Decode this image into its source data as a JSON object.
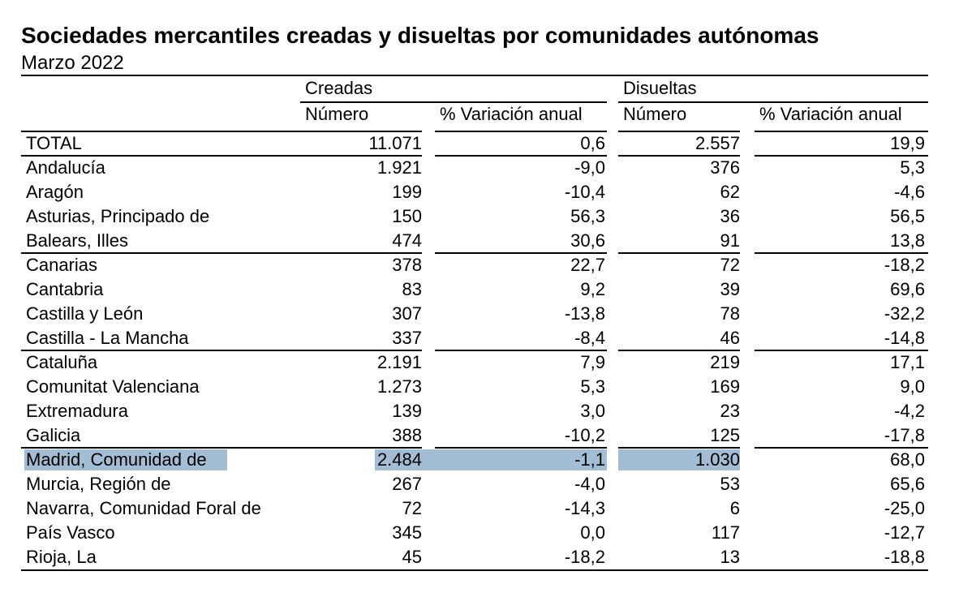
{
  "title": "Sociedades mercantiles creadas y disueltas por comunidades autónomas",
  "subtitle": "Marzo 2022",
  "groups": {
    "creadas": "Creadas",
    "disueltas": "Disueltas"
  },
  "columns": {
    "numero_creadas": "Número",
    "variacion_creadas": "% Variación anual",
    "numero_disueltas": "Número",
    "variacion_disueltas": "% Variación anual"
  },
  "highlight_color": "#a3bdd4",
  "rows": [
    {
      "name": "TOTAL",
      "c_num": "11.071",
      "c_var": "0,6",
      "d_num": "2.557",
      "d_var": "19,9"
    },
    {
      "name": "Andalucía",
      "c_num": "1.921",
      "c_var": "-9,0",
      "d_num": "376",
      "d_var": "5,3"
    },
    {
      "name": "Aragón",
      "c_num": "199",
      "c_var": "-10,4",
      "d_num": "62",
      "d_var": "-4,6"
    },
    {
      "name": "Asturias, Principado de",
      "c_num": "150",
      "c_var": "56,3",
      "d_num": "36",
      "d_var": "56,5"
    },
    {
      "name": "Balears, Illes",
      "c_num": "474",
      "c_var": "30,6",
      "d_num": "91",
      "d_var": "13,8"
    },
    {
      "name": "Canarias",
      "c_num": "378",
      "c_var": "22,7",
      "d_num": "72",
      "d_var": "-18,2"
    },
    {
      "name": "Cantabria",
      "c_num": "83",
      "c_var": "9,2",
      "d_num": "39",
      "d_var": "69,6"
    },
    {
      "name": "Castilla y León",
      "c_num": "307",
      "c_var": "-13,8",
      "d_num": "78",
      "d_var": "-32,2"
    },
    {
      "name": "Castilla - La Mancha",
      "c_num": "337",
      "c_var": "-8,4",
      "d_num": "46",
      "d_var": "-14,8"
    },
    {
      "name": "Cataluña",
      "c_num": "2.191",
      "c_var": "7,9",
      "d_num": "219",
      "d_var": "17,1"
    },
    {
      "name": "Comunitat Valenciana",
      "c_num": "1.273",
      "c_var": "5,3",
      "d_num": "169",
      "d_var": "9,0"
    },
    {
      "name": "Extremadura",
      "c_num": "139",
      "c_var": "3,0",
      "d_num": "23",
      "d_var": "-4,2"
    },
    {
      "name": "Galicia",
      "c_num": "388",
      "c_var": "-10,2",
      "d_num": "125",
      "d_var": "-17,8"
    },
    {
      "name": "Madrid, Comunidad de",
      "c_num": "2.484",
      "c_var": "-1,1",
      "d_num": "1.030",
      "d_var": "68,0",
      "selected": true
    },
    {
      "name": "Murcia, Región de",
      "c_num": "267",
      "c_var": "-4,0",
      "d_num": "53",
      "d_var": "65,6"
    },
    {
      "name": "Navarra, Comunidad Foral de",
      "c_num": "72",
      "c_var": "-14,3",
      "d_num": "6",
      "d_var": "-25,0"
    },
    {
      "name": "País Vasco",
      "c_num": "345",
      "c_var": "0,0",
      "d_num": "117",
      "d_var": "-12,7"
    },
    {
      "name": "Rioja, La",
      "c_num": "45",
      "c_var": "-18,2",
      "d_num": "13",
      "d_var": "-18,8"
    }
  ]
}
